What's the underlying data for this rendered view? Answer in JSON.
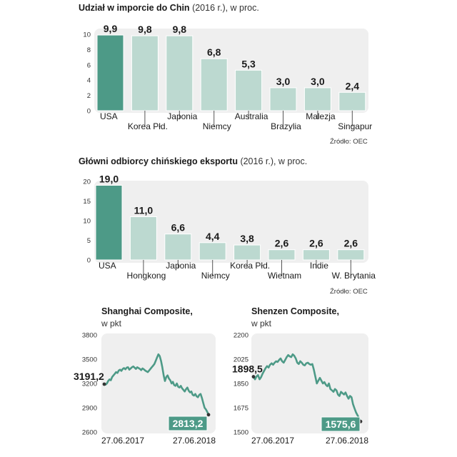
{
  "colors": {
    "highlight": "#4d9a87",
    "bar": "#bcd9d0",
    "panel": "#efefef",
    "line": "#4d9a87",
    "dark": "#1a1a1a"
  },
  "chart_data": [
    {
      "type": "bar",
      "title": "Udział w imporcie do Chin",
      "subtitle": "(2016 r.), w proc.",
      "categories": [
        "USA",
        "Korea Płd.",
        "Japonia",
        "Niemcy",
        "Australia",
        "Brazylia",
        "Malezja",
        "Singapur"
      ],
      "values": [
        9.9,
        9.8,
        9.8,
        6.8,
        5.3,
        3.0,
        3.0,
        2.4
      ],
      "value_labels": [
        "9,9",
        "9,8",
        "9,8",
        "6,8",
        "5,3",
        "3,0",
        "3,0",
        "2,4"
      ],
      "yticks": [
        "0",
        "2",
        "4",
        "6",
        "8",
        "10"
      ],
      "ylim": [
        0,
        10
      ],
      "source": "Źródło: OEC"
    },
    {
      "type": "bar",
      "title": "Główni odbiorcy chińskiego eksportu",
      "subtitle": "(2016 r.), w proc.",
      "categories": [
        "USA",
        "Hongkong",
        "Japonia",
        "Niemcy",
        "Korea Płd.",
        "Wietnam",
        "Indie",
        "W. Brytania"
      ],
      "values": [
        19.0,
        11.0,
        6.6,
        4.4,
        3.8,
        2.6,
        2.6,
        2.6
      ],
      "value_labels": [
        "19,0",
        "11,0",
        "6,6",
        "4,4",
        "3,8",
        "2,6",
        "2,6",
        "2,6"
      ],
      "yticks": [
        "0",
        "5",
        "10",
        "15",
        "20"
      ],
      "ylim": [
        0,
        20
      ],
      "source": "Źródło: OEC"
    },
    {
      "type": "line",
      "title": "Shanghai Composite,",
      "unit": "w pkt",
      "yticks": [
        "2600",
        "2900",
        "3200",
        "3500",
        "3800"
      ],
      "ylim": [
        2600,
        3800
      ],
      "x_labels": [
        "27.06.2017",
        "27.06.2018"
      ],
      "start_value": 3191.2,
      "start_label": "3191,2",
      "end_value": 2813.2,
      "end_label": "2813,2",
      "values": [
        3191.2,
        3185,
        3200,
        3230,
        3250,
        3240,
        3280,
        3300,
        3320,
        3340,
        3330,
        3360,
        3370,
        3355,
        3380,
        3390,
        3375,
        3395,
        3400,
        3370,
        3385,
        3400,
        3410,
        3395,
        3380,
        3400,
        3390,
        3380,
        3365,
        3385,
        3375,
        3360,
        3350,
        3340,
        3360,
        3380,
        3400,
        3420,
        3440,
        3480,
        3520,
        3560,
        3540,
        3480,
        3400,
        3300,
        3230,
        3280,
        3300,
        3260,
        3240,
        3200,
        3220,
        3180,
        3170,
        3200,
        3160,
        3150,
        3170,
        3140,
        3120,
        3100,
        3130,
        3150,
        3110,
        3090,
        3100,
        3060,
        3050,
        3070,
        3040,
        3030,
        3060,
        3070,
        3020,
        2960,
        2900,
        2880,
        2850,
        2813.2
      ]
    },
    {
      "type": "line",
      "title": "Shenzen Composite,",
      "unit": "w pkt",
      "yticks": [
        "1500",
        "1675",
        "1850",
        "2025",
        "2200"
      ],
      "ylim": [
        1500,
        2200
      ],
      "x_labels": [
        "27.06.2017",
        "27.06.2018"
      ],
      "start_value": 1898.5,
      "start_label": "1898,5",
      "end_value": 1575.6,
      "end_label": "1575,6",
      "values": [
        1898.5,
        1880,
        1900,
        1910,
        1880,
        1895,
        1920,
        1940,
        1960,
        1975,
        1965,
        1985,
        1995,
        1985,
        2000,
        2010,
        2005,
        2020,
        2030,
        2010,
        2000,
        2020,
        2040,
        2055,
        2045,
        2040,
        2060,
        2050,
        2030,
        2000,
        1990,
        2010,
        2000,
        1985,
        1980,
        1995,
        2000,
        1990,
        1985,
        1990,
        1950,
        1900,
        1850,
        1870,
        1890,
        1870,
        1850,
        1860,
        1840,
        1830,
        1850,
        1810,
        1800,
        1790,
        1810,
        1800,
        1770,
        1760,
        1790,
        1780,
        1770,
        1785,
        1760,
        1740,
        1760,
        1750,
        1700,
        1670,
        1640,
        1620,
        1600,
        1575.6
      ]
    }
  ]
}
